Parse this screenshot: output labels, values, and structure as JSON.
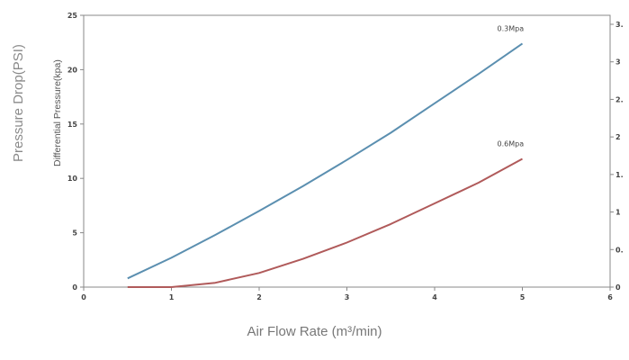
{
  "chart_data": {
    "type": "line",
    "title": "",
    "xlabel": "Air Flow Rate (m³/min)",
    "ylabel": "Pressure Drop(PSI)",
    "ylabel_inner": "Differential Pressure(kpa)",
    "xlim": [
      0,
      6
    ],
    "ylim": [
      0,
      25
    ],
    "x_ticks": [
      "0",
      "1",
      "2",
      "3",
      "4",
      "5",
      "6"
    ],
    "y_ticks": [
      "0",
      "5",
      "10",
      "15",
      "20",
      "25"
    ],
    "y2_ticks": [
      "0",
      "0.",
      "1",
      "1.",
      "2",
      "2.",
      "3",
      "3."
    ],
    "grid": false,
    "series": [
      {
        "name": "0.3Mpa",
        "color": "#5b8fb0",
        "x": [
          0.5,
          1,
          1.5,
          2,
          2.5,
          3,
          3.5,
          4,
          4.5,
          5
        ],
        "y": [
          0.8,
          2.7,
          4.8,
          7.0,
          9.3,
          11.7,
          14.2,
          16.9,
          19.6,
          22.4
        ]
      },
      {
        "name": "0.6Mpa",
        "color": "#b05a5a",
        "x": [
          0.5,
          1,
          1.5,
          2,
          2.5,
          3,
          3.5,
          4,
          4.5,
          5
        ],
        "y": [
          0.0,
          0.0,
          0.4,
          1.3,
          2.6,
          4.1,
          5.8,
          7.7,
          9.6,
          11.8
        ]
      }
    ]
  }
}
